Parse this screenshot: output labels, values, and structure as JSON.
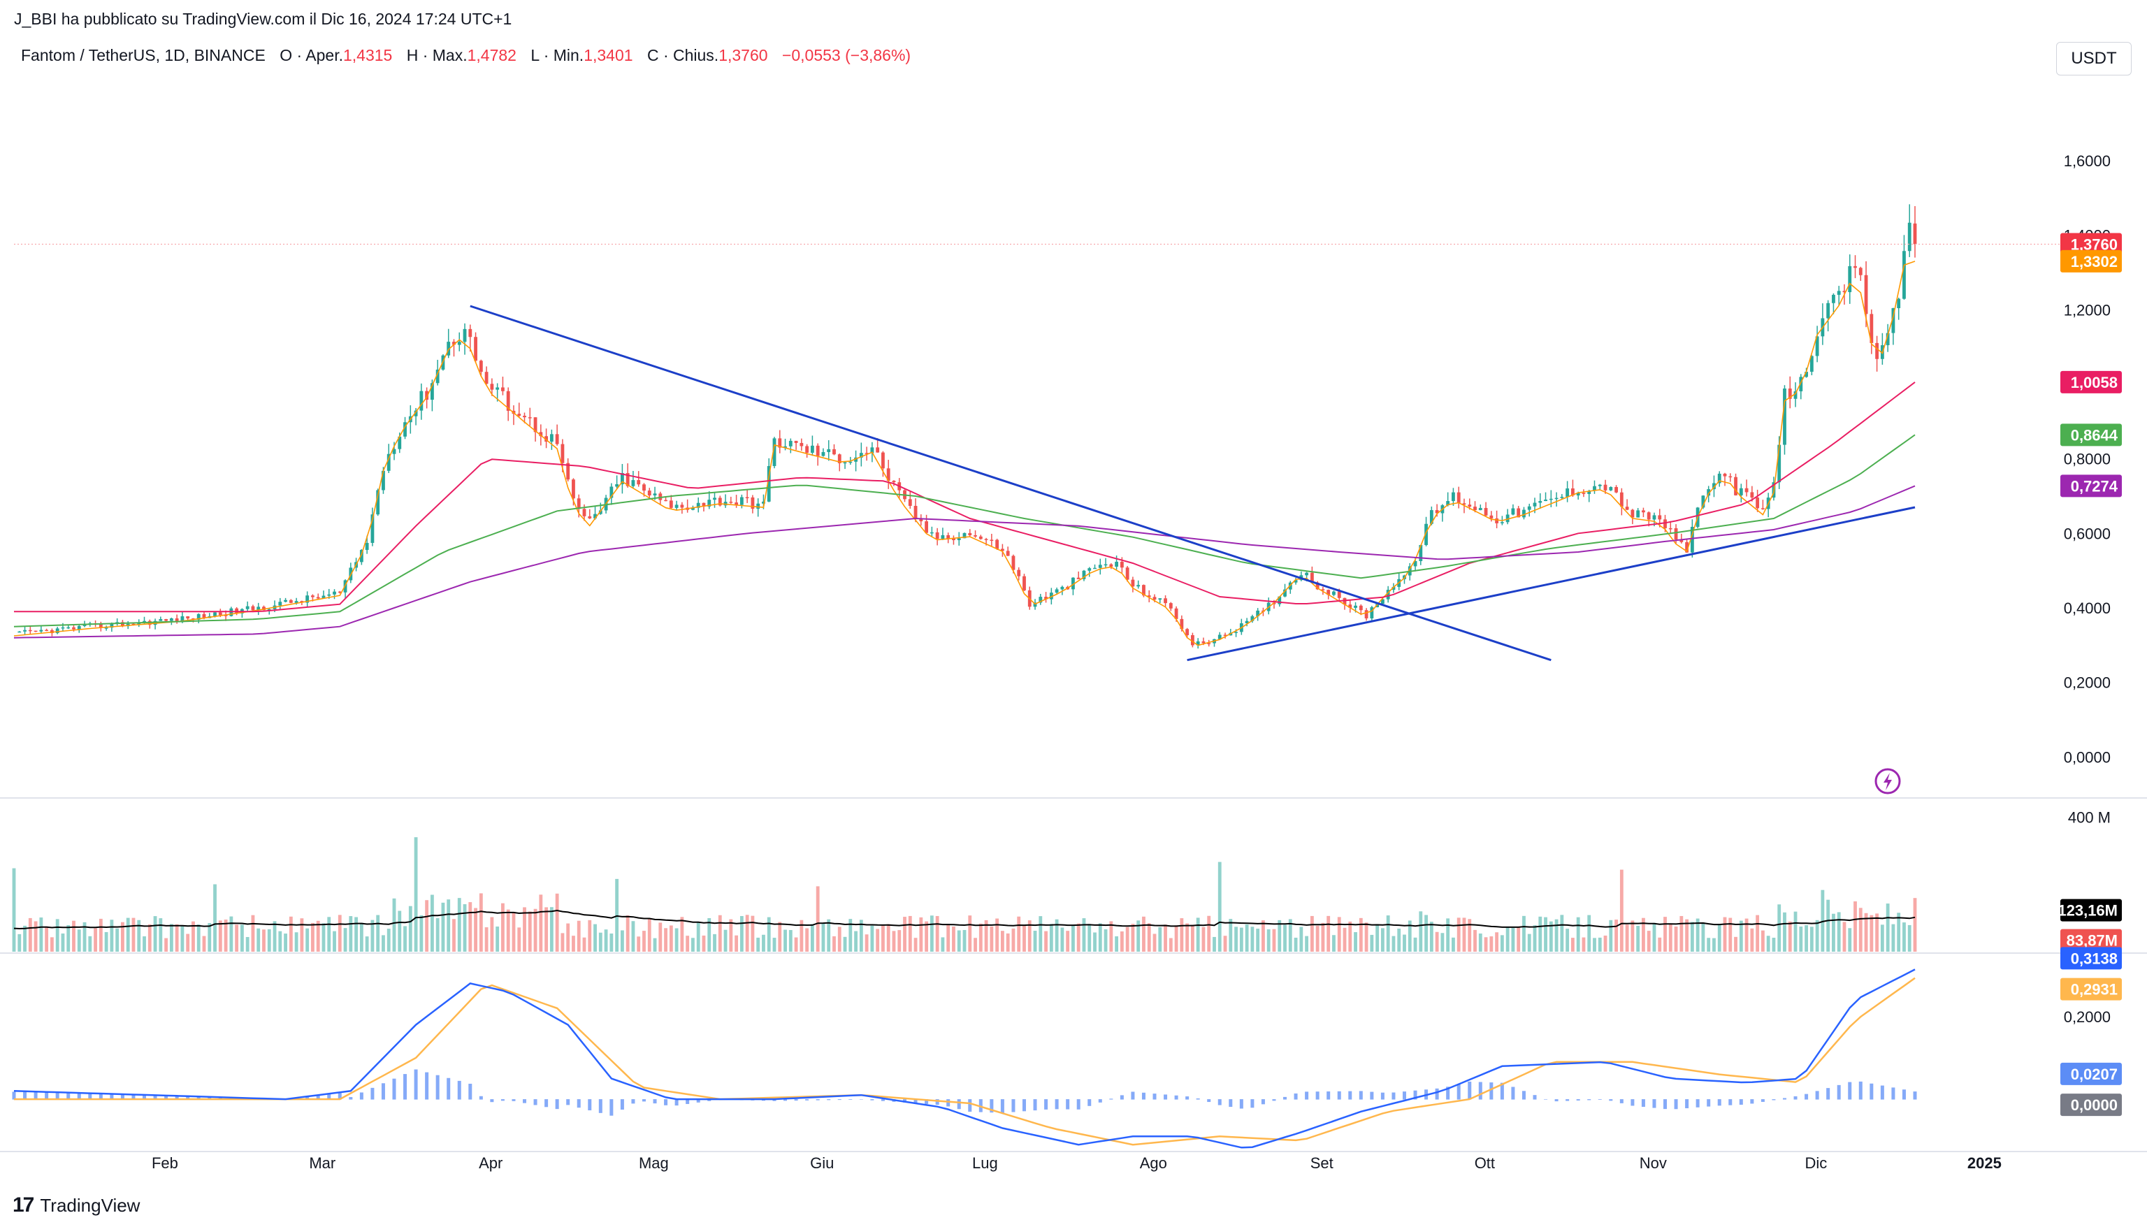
{
  "publisher_line": "J_BBI ha pubblicato su TradingView.com il Dic 16, 2024 17:24 UTC+1",
  "header": {
    "symbol": "Fantom / TetherUS, 1D, BINANCE",
    "o_label": "O · Aper.",
    "o_value": "1,4315",
    "h_label": "H · Max.",
    "h_value": "1,4782",
    "l_label": "L · Min.",
    "l_value": "1,3401",
    "c_label": "C · Chius.",
    "c_value": "1,3760",
    "change": "−0,0553 (−3,86%)"
  },
  "currency_button": "USDT",
  "footer_brand": "TradingView",
  "footer_logo": "17",
  "colors": {
    "up": "#26a69a",
    "down": "#ef5350",
    "ema_fast": "#ff9800",
    "ema_red": "#e91e63",
    "ema_green": "#4caf50",
    "ema_purple": "#9c27b0",
    "trendline": "#1c3fc8",
    "vol_avg": "#000000",
    "macd": "#2962ff",
    "signal": "#ffb74d",
    "hist": "#5c8df6"
  },
  "chart_data": [
    {
      "type": "candlestick",
      "title": "Fantom / TetherUS, 1D, BINANCE",
      "y_ticks": [
        "1,6000",
        "1,4000",
        "1,2000",
        "1,0000",
        "0,8000",
        "0,6000",
        "0,4000",
        "0,2000",
        "0,0000"
      ],
      "ylim": [
        -0.05,
        1.75
      ],
      "x_ticks": [
        "Feb",
        "Mar",
        "Apr",
        "Mag",
        "Giu",
        "Lug",
        "Ago",
        "Set",
        "Ott",
        "Nov",
        "Dic",
        "2025"
      ],
      "price_points": [
        [
          "2024-01-01",
          0.33
        ],
        [
          "2024-01-15",
          0.35
        ],
        [
          "2024-02-01",
          0.37
        ],
        [
          "2024-02-15",
          0.4
        ],
        [
          "2024-03-01",
          0.44
        ],
        [
          "2024-03-06",
          0.58
        ],
        [
          "2024-03-09",
          0.78
        ],
        [
          "2024-03-12",
          0.88
        ],
        [
          "2024-03-17",
          0.98
        ],
        [
          "2024-03-21",
          1.11
        ],
        [
          "2024-03-24",
          1.15
        ],
        [
          "2024-03-28",
          1.0
        ],
        [
          "2024-04-05",
          0.9
        ],
        [
          "2024-04-10",
          0.84
        ],
        [
          "2024-04-13",
          0.68
        ],
        [
          "2024-04-16",
          0.63
        ],
        [
          "2024-04-22",
          0.75
        ],
        [
          "2024-05-01",
          0.67
        ],
        [
          "2024-05-10",
          0.69
        ],
        [
          "2024-05-18",
          0.68
        ],
        [
          "2024-05-20",
          0.85
        ],
        [
          "2024-05-25",
          0.83
        ],
        [
          "2024-06-02",
          0.8
        ],
        [
          "2024-06-07",
          0.83
        ],
        [
          "2024-06-12",
          0.7
        ],
        [
          "2024-06-18",
          0.59
        ],
        [
          "2024-06-25",
          0.6
        ],
        [
          "2024-07-01",
          0.56
        ],
        [
          "2024-07-04",
          0.48
        ],
        [
          "2024-07-06",
          0.41
        ],
        [
          "2024-07-12",
          0.45
        ],
        [
          "2024-07-18",
          0.51
        ],
        [
          "2024-07-22",
          0.52
        ],
        [
          "2024-07-25",
          0.46
        ],
        [
          "2024-08-01",
          0.4
        ],
        [
          "2024-08-05",
          0.3
        ],
        [
          "2024-08-10",
          0.32
        ],
        [
          "2024-08-15",
          0.36
        ],
        [
          "2024-08-20",
          0.42
        ],
        [
          "2024-08-25",
          0.5
        ],
        [
          "2024-08-28",
          0.46
        ],
        [
          "2024-09-06",
          0.38
        ],
        [
          "2024-09-10",
          0.45
        ],
        [
          "2024-09-14",
          0.5
        ],
        [
          "2024-09-18",
          0.65
        ],
        [
          "2024-09-22",
          0.7
        ],
        [
          "2024-09-30",
          0.64
        ],
        [
          "2024-10-05",
          0.66
        ],
        [
          "2024-10-10",
          0.69
        ],
        [
          "2024-10-15",
          0.72
        ],
        [
          "2024-10-20",
          0.73
        ],
        [
          "2024-10-25",
          0.65
        ],
        [
          "2024-10-30",
          0.64
        ],
        [
          "2024-11-02",
          0.58
        ],
        [
          "2024-11-04",
          0.56
        ],
        [
          "2024-11-07",
          0.7
        ],
        [
          "2024-11-11",
          0.77
        ],
        [
          "2024-11-13",
          0.72
        ],
        [
          "2024-11-18",
          0.66
        ],
        [
          "2024-11-20",
          0.72
        ],
        [
          "2024-11-22",
          0.97
        ],
        [
          "2024-11-25",
          1.0
        ],
        [
          "2024-11-28",
          1.15
        ],
        [
          "2024-12-03",
          1.25
        ],
        [
          "2024-12-05",
          1.33
        ],
        [
          "2024-12-07",
          1.2
        ],
        [
          "2024-12-09",
          1.05
        ],
        [
          "2024-12-11",
          1.15
        ],
        [
          "2024-12-13",
          1.25
        ],
        [
          "2024-12-15",
          1.43
        ],
        [
          "2024-12-16",
          1.376
        ]
      ],
      "ema_values": [
        {
          "name": "1,3302",
          "color": "#ff9800",
          "value": 1.3302
        },
        {
          "name": "1,0058",
          "color": "#e91e63",
          "value": 1.0058
        },
        {
          "name": "0,8644",
          "color": "#4caf50",
          "value": 0.8644
        },
        {
          "name": "0,7274",
          "color": "#9c27b0",
          "value": 0.7274
        }
      ],
      "ema_red_points": [
        [
          "2024-01-01",
          0.39
        ],
        [
          "2024-02-15",
          0.39
        ],
        [
          "2024-03-01",
          0.41
        ],
        [
          "2024-03-15",
          0.62
        ],
        [
          "2024-03-28",
          0.8
        ],
        [
          "2024-04-15",
          0.78
        ],
        [
          "2024-05-05",
          0.72
        ],
        [
          "2024-05-25",
          0.75
        ],
        [
          "2024-06-10",
          0.74
        ],
        [
          "2024-06-25",
          0.64
        ],
        [
          "2024-07-10",
          0.58
        ],
        [
          "2024-07-25",
          0.52
        ],
        [
          "2024-08-10",
          0.43
        ],
        [
          "2024-08-25",
          0.41
        ],
        [
          "2024-09-10",
          0.43
        ],
        [
          "2024-09-25",
          0.52
        ],
        [
          "2024-10-15",
          0.6
        ],
        [
          "2024-11-01",
          0.63
        ],
        [
          "2024-11-15",
          0.68
        ],
        [
          "2024-12-01",
          0.84
        ],
        [
          "2024-12-16",
          1.0058
        ]
      ],
      "ema_green_points": [
        [
          "2024-01-01",
          0.35
        ],
        [
          "2024-02-15",
          0.37
        ],
        [
          "2024-03-01",
          0.39
        ],
        [
          "2024-03-20",
          0.55
        ],
        [
          "2024-04-10",
          0.66
        ],
        [
          "2024-05-01",
          0.7
        ],
        [
          "2024-05-25",
          0.73
        ],
        [
          "2024-06-15",
          0.7
        ],
        [
          "2024-07-05",
          0.64
        ],
        [
          "2024-07-25",
          0.59
        ],
        [
          "2024-08-15",
          0.52
        ],
        [
          "2024-09-05",
          0.48
        ],
        [
          "2024-09-20",
          0.51
        ],
        [
          "2024-10-10",
          0.56
        ],
        [
          "2024-11-01",
          0.6
        ],
        [
          "2024-11-20",
          0.64
        ],
        [
          "2024-12-05",
          0.75
        ],
        [
          "2024-12-16",
          0.8644
        ]
      ],
      "ema_purple_points": [
        [
          "2024-01-01",
          0.32
        ],
        [
          "2024-02-15",
          0.33
        ],
        [
          "2024-03-01",
          0.35
        ],
        [
          "2024-03-25",
          0.47
        ],
        [
          "2024-04-15",
          0.55
        ],
        [
          "2024-05-15",
          0.6
        ],
        [
          "2024-06-15",
          0.64
        ],
        [
          "2024-07-15",
          0.62
        ],
        [
          "2024-08-15",
          0.57
        ],
        [
          "2024-09-01",
          0.55
        ],
        [
          "2024-09-20",
          0.53
        ],
        [
          "2024-10-15",
          0.55
        ],
        [
          "2024-11-01",
          0.58
        ],
        [
          "2024-11-20",
          0.61
        ],
        [
          "2024-12-05",
          0.66
        ],
        [
          "2024-12-16",
          0.7274
        ]
      ],
      "trendlines": [
        {
          "from": [
            "2024-03-25",
            1.21
          ],
          "to": [
            "2024-10-10",
            0.26
          ]
        },
        {
          "from": [
            "2024-08-04",
            0.26
          ],
          "to": [
            "2024-12-16",
            0.67
          ]
        }
      ],
      "last_price_label": "1,3760"
    },
    {
      "type": "bar",
      "title": "Volume",
      "y_ticks": [
        "400 M"
      ],
      "avg_label": "123,16M",
      "last_label": "83,87M",
      "ylim": [
        0,
        440
      ],
      "unit": "M"
    },
    {
      "type": "line",
      "title": "MACD",
      "y_ticks": [
        "0,2000"
      ],
      "labels": [
        "0,3138",
        "0,2931",
        "0,0207",
        "0,0000"
      ],
      "ylim": [
        -0.13,
        0.35
      ],
      "macd_points": [
        [
          "2024-01-01",
          0.02
        ],
        [
          "2024-02-20",
          0.0
        ],
        [
          "2024-03-03",
          0.02
        ],
        [
          "2024-03-15",
          0.18
        ],
        [
          "2024-03-25",
          0.28
        ],
        [
          "2024-04-01",
          0.26
        ],
        [
          "2024-04-12",
          0.18
        ],
        [
          "2024-04-20",
          0.05
        ],
        [
          "2024-05-01",
          0.0
        ],
        [
          "2024-05-20",
          0.0
        ],
        [
          "2024-06-05",
          0.01
        ],
        [
          "2024-06-20",
          -0.02
        ],
        [
          "2024-07-01",
          -0.07
        ],
        [
          "2024-07-15",
          -0.11
        ],
        [
          "2024-07-25",
          -0.09
        ],
        [
          "2024-08-05",
          -0.09
        ],
        [
          "2024-08-15",
          -0.12
        ],
        [
          "2024-08-25",
          -0.08
        ],
        [
          "2024-09-05",
          -0.03
        ],
        [
          "2024-09-20",
          0.02
        ],
        [
          "2024-10-01",
          0.08
        ],
        [
          "2024-10-20",
          0.09
        ],
        [
          "2024-11-01",
          0.05
        ],
        [
          "2024-11-15",
          0.04
        ],
        [
          "2024-11-25",
          0.05
        ],
        [
          "2024-12-05",
          0.24
        ],
        [
          "2024-12-16",
          0.3138
        ]
      ],
      "signal_points": [
        [
          "2024-01-01",
          0.0
        ],
        [
          "2024-03-01",
          0.0
        ],
        [
          "2024-03-15",
          0.1
        ],
        [
          "2024-03-28",
          0.28
        ],
        [
          "2024-04-10",
          0.22
        ],
        [
          "2024-04-25",
          0.03
        ],
        [
          "2024-05-10",
          0.0
        ],
        [
          "2024-06-05",
          0.01
        ],
        [
          "2024-06-25",
          -0.01
        ],
        [
          "2024-07-10",
          -0.07
        ],
        [
          "2024-07-25",
          -0.11
        ],
        [
          "2024-08-10",
          -0.09
        ],
        [
          "2024-08-25",
          -0.1
        ],
        [
          "2024-09-10",
          -0.03
        ],
        [
          "2024-09-25",
          0.0
        ],
        [
          "2024-10-10",
          0.09
        ],
        [
          "2024-10-25",
          0.09
        ],
        [
          "2024-11-10",
          0.06
        ],
        [
          "2024-11-25",
          0.04
        ],
        [
          "2024-12-05",
          0.19
        ],
        [
          "2024-12-16",
          0.2931
        ]
      ]
    }
  ]
}
